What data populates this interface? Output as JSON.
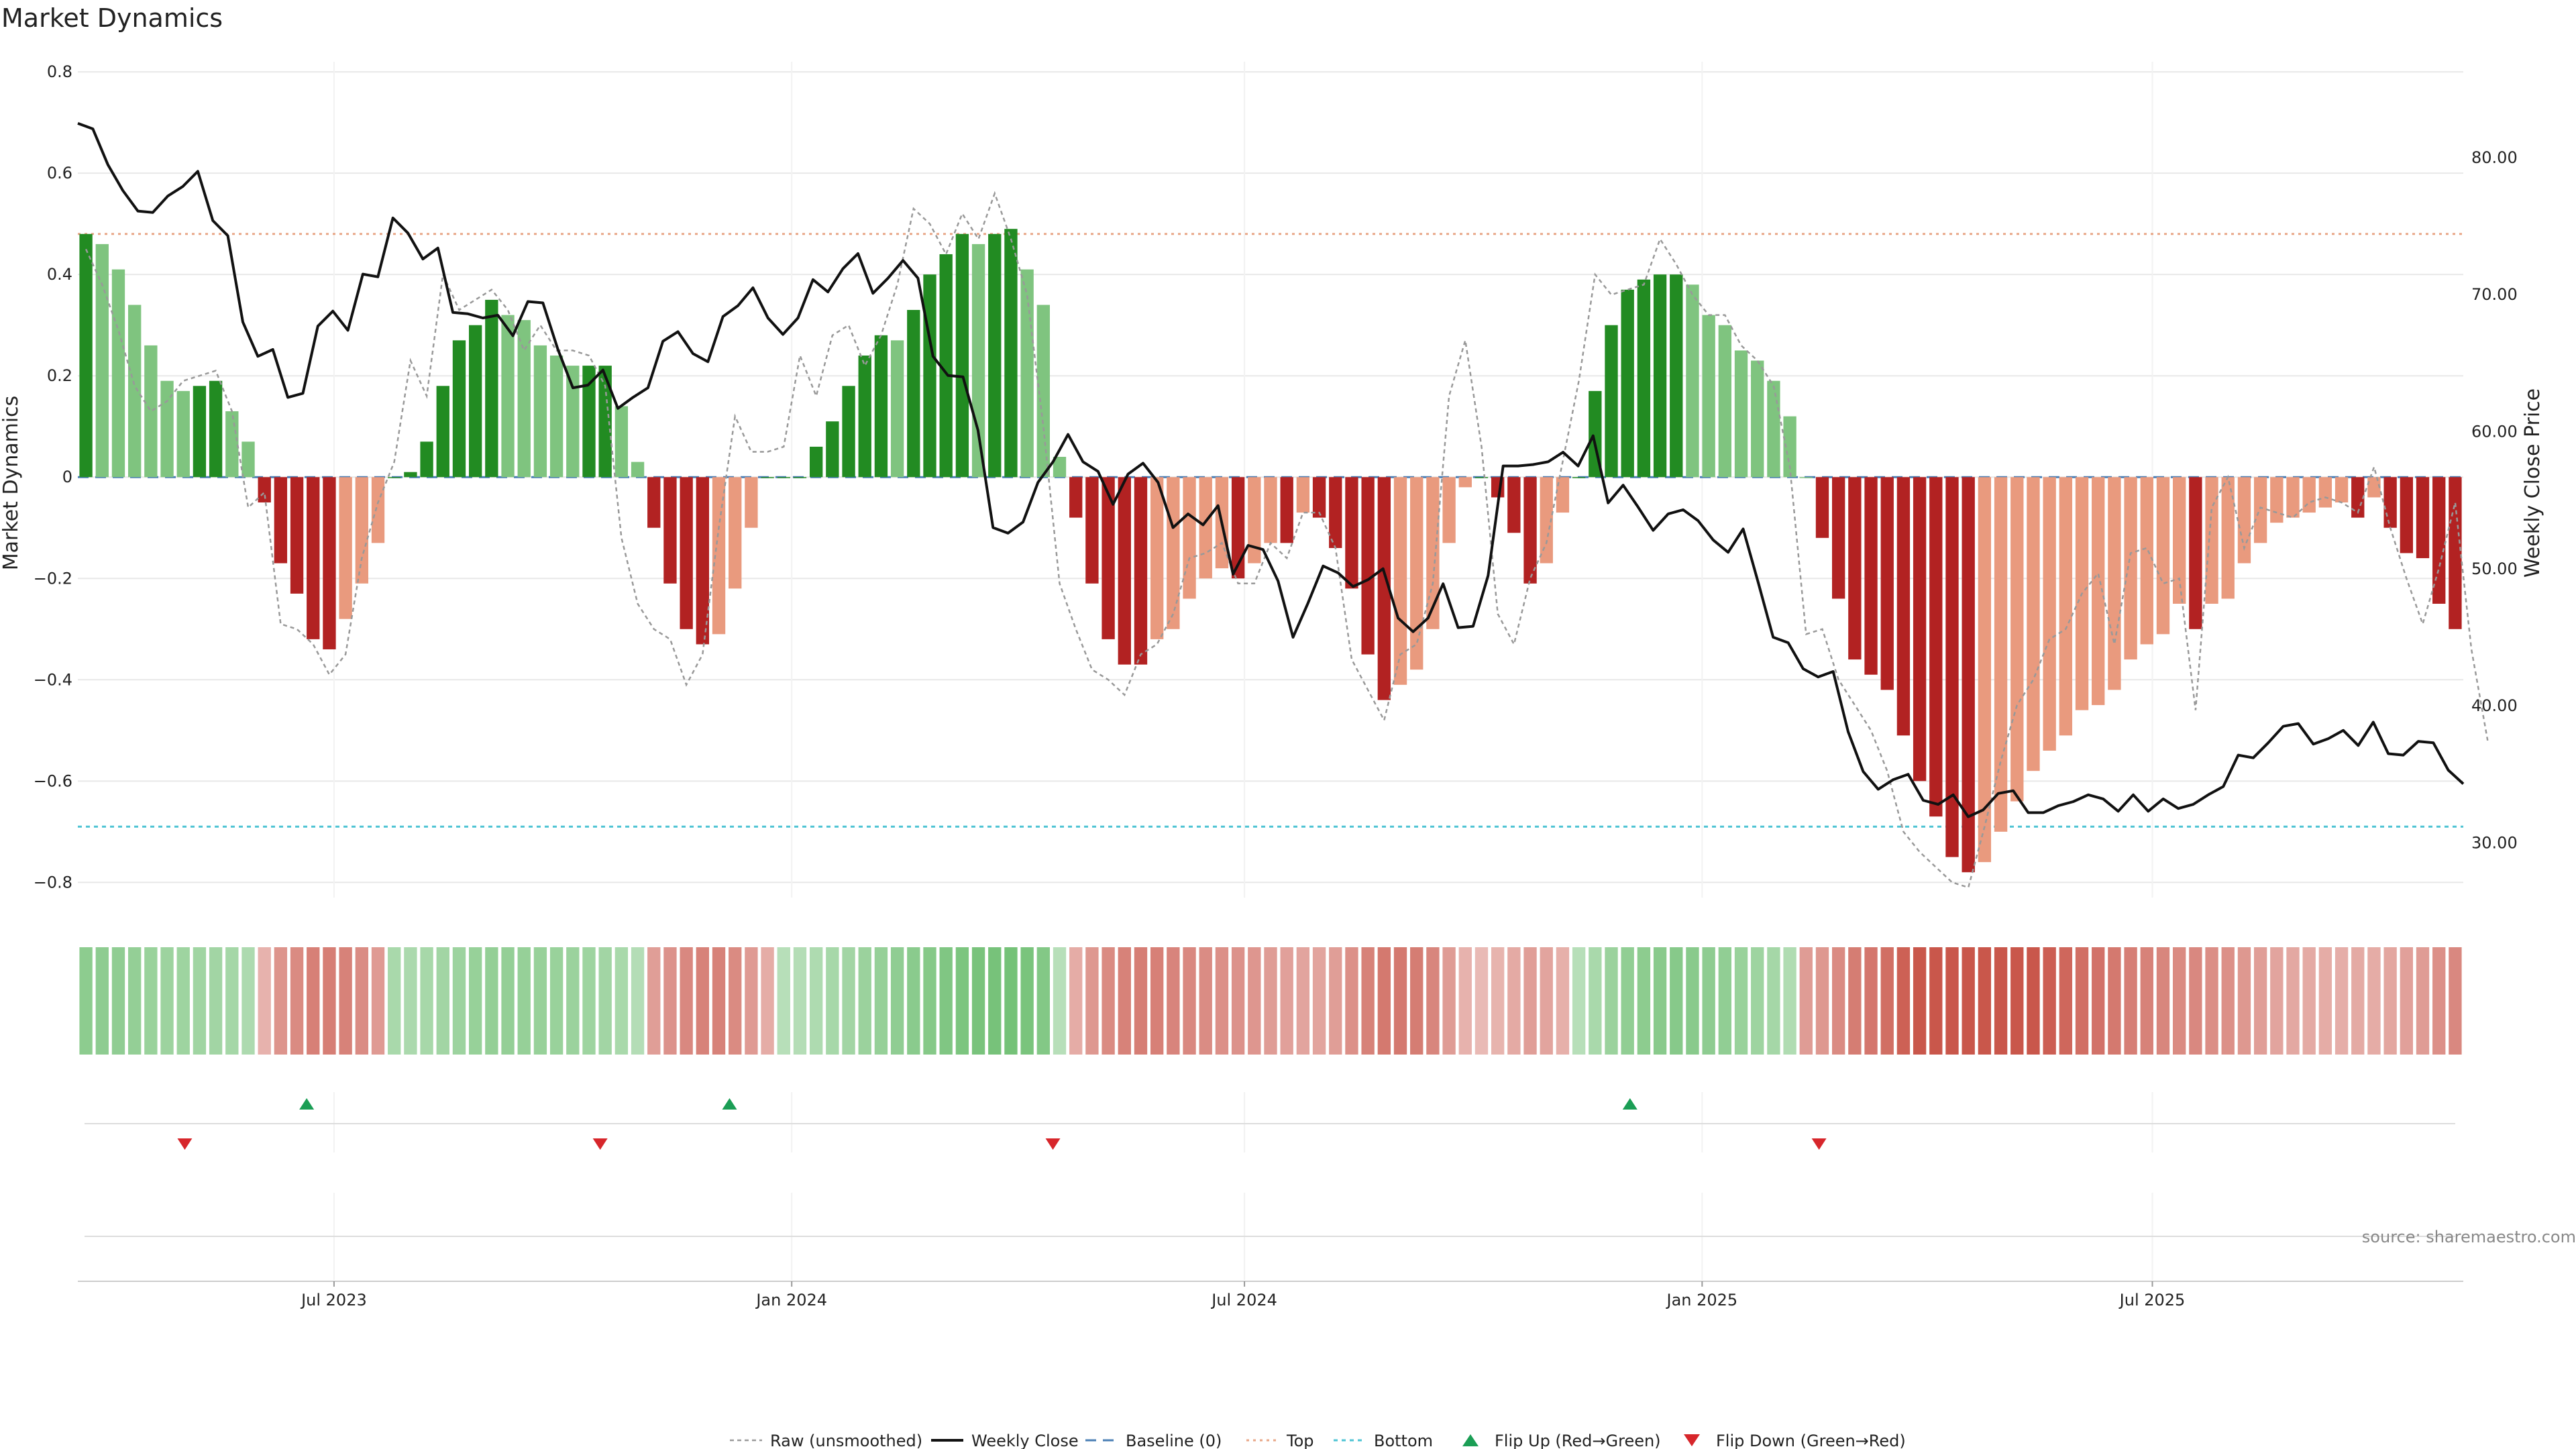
{
  "chart_data": {
    "type": "bar",
    "title": "Market Dynamics",
    "ylabel": "Market Dynamics",
    "y2label": "Weekly Close Price",
    "source": "source: sharemaestro.com",
    "ylim": [
      -0.83,
      0.82
    ],
    "y2lim": [
      26.0,
      87.0
    ],
    "yticks": [
      0.8,
      0.6,
      0.4,
      0.2,
      0,
      -0.2,
      -0.4,
      -0.6,
      -0.8
    ],
    "ytick_labels": [
      "0.8",
      "0.6",
      "0.4",
      "0.2",
      "0",
      "−0.2",
      "−0.4",
      "−0.6",
      "−0.8"
    ],
    "y2ticks": [
      80,
      70,
      60,
      50,
      40,
      30
    ],
    "y2tick_labels": [
      "80.00",
      "70.00",
      "60.00",
      "50.00",
      "40.00",
      "30.00"
    ],
    "x_date_range": [
      "2023-03-20",
      "2025-11-03"
    ],
    "xticks": [
      {
        "date": "2023-07-01",
        "label": "Jul 2023"
      },
      {
        "date": "2024-01-01",
        "label": "Jan 2024"
      },
      {
        "date": "2024-07-01",
        "label": "Jul 2024"
      },
      {
        "date": "2025-01-01",
        "label": "Jan 2025"
      },
      {
        "date": "2025-07-01",
        "label": "Jul 2025"
      }
    ],
    "top_level": 0.48,
    "bottom_level": -0.69,
    "baseline": 0,
    "bar_values": [
      0.48,
      0.46,
      0.41,
      0.34,
      0.26,
      0.19,
      0.17,
      0.18,
      0.19,
      0.13,
      0.07,
      -0.05,
      -0.17,
      -0.23,
      -0.32,
      -0.34,
      -0.28,
      -0.21,
      -0.13,
      0.0,
      0.01,
      0.07,
      0.18,
      0.27,
      0.3,
      0.35,
      0.32,
      0.31,
      0.26,
      0.24,
      0.22,
      0.22,
      0.22,
      0.14,
      0.03,
      -0.1,
      -0.21,
      -0.3,
      -0.33,
      -0.31,
      -0.22,
      -0.1,
      0.0,
      0.0,
      0.0,
      0.06,
      0.11,
      0.18,
      0.24,
      0.28,
      0.27,
      0.33,
      0.4,
      0.44,
      0.48,
      0.46,
      0.48,
      0.49,
      0.41,
      0.34,
      0.04,
      -0.08,
      -0.21,
      -0.32,
      -0.37,
      -0.37,
      -0.32,
      -0.3,
      -0.24,
      -0.2,
      -0.18,
      -0.2,
      -0.17,
      -0.13,
      -0.13,
      -0.07,
      -0.08,
      -0.14,
      -0.22,
      -0.35,
      -0.44,
      -0.41,
      -0.38,
      -0.3,
      -0.13,
      -0.02,
      0.0,
      -0.04,
      -0.11,
      -0.21,
      -0.17,
      -0.07,
      0.0,
      0.17,
      0.3,
      0.37,
      0.39,
      0.4,
      0.4,
      0.38,
      0.32,
      0.3,
      0.25,
      0.23,
      0.19,
      0.12,
      0.0,
      -0.12,
      -0.24,
      -0.36,
      -0.39,
      -0.42,
      -0.51,
      -0.6,
      -0.67,
      -0.75,
      -0.78,
      -0.76,
      -0.7,
      -0.64,
      -0.58,
      -0.54,
      -0.51,
      -0.46,
      -0.45,
      -0.42,
      -0.36,
      -0.33,
      -0.31,
      -0.25,
      -0.3,
      -0.25,
      -0.24,
      -0.17,
      -0.13,
      -0.09,
      -0.08,
      -0.07,
      -0.06,
      -0.05,
      -0.08,
      -0.04,
      -0.1,
      -0.15,
      -0.16,
      -0.25,
      -0.3
    ],
    "raw_values": [
      0.45,
      0.38,
      0.29,
      0.18,
      0.13,
      0.15,
      0.19,
      0.2,
      0.21,
      0.13,
      -0.06,
      -0.03,
      -0.29,
      -0.3,
      -0.33,
      -0.39,
      -0.35,
      -0.16,
      -0.05,
      0.03,
      0.23,
      0.16,
      0.4,
      0.33,
      0.35,
      0.37,
      0.33,
      0.25,
      0.3,
      0.25,
      0.25,
      0.24,
      0.18,
      -0.12,
      -0.25,
      -0.3,
      -0.32,
      -0.41,
      -0.35,
      -0.1,
      0.12,
      0.05,
      0.05,
      0.06,
      0.24,
      0.16,
      0.28,
      0.3,
      0.22,
      0.28,
      0.38,
      0.53,
      0.5,
      0.44,
      0.52,
      0.47,
      0.56,
      0.47,
      0.36,
      0.1,
      -0.21,
      -0.3,
      -0.38,
      -0.4,
      -0.43,
      -0.35,
      -0.33,
      -0.27,
      -0.16,
      -0.15,
      -0.13,
      -0.21,
      -0.21,
      -0.13,
      -0.16,
      -0.07,
      -0.07,
      -0.14,
      -0.36,
      -0.42,
      -0.48,
      -0.35,
      -0.33,
      -0.21,
      0.16,
      0.27,
      0.06,
      -0.27,
      -0.33,
      -0.2,
      -0.13,
      0.03,
      0.19,
      0.4,
      0.36,
      0.37,
      0.38,
      0.47,
      0.42,
      0.36,
      0.32,
      0.32,
      0.26,
      0.23,
      0.18,
      0.02,
      -0.31,
      -0.3,
      -0.4,
      -0.45,
      -0.5,
      -0.58,
      -0.7,
      -0.74,
      -0.77,
      -0.8,
      -0.81,
      -0.69,
      -0.56,
      -0.45,
      -0.4,
      -0.32,
      -0.3,
      -0.23,
      -0.19,
      -0.33,
      -0.15,
      -0.14,
      -0.21,
      -0.2,
      -0.46,
      -0.06,
      0.0,
      -0.14,
      -0.06,
      -0.07,
      -0.08,
      -0.05,
      -0.04,
      -0.05,
      -0.07,
      0.02,
      -0.1,
      -0.2,
      -0.29,
      -0.18,
      -0.05,
      -0.34,
      -0.52
    ],
    "weekly_close": [
      82.5,
      82.1,
      79.5,
      77.6,
      76.1,
      76.0,
      77.2,
      77.9,
      79.0,
      75.4,
      74.3,
      68.0,
      65.5,
      66.0,
      62.5,
      62.8,
      67.7,
      68.8,
      67.4,
      71.5,
      71.3,
      75.6,
      74.5,
      72.6,
      73.4,
      68.7,
      68.6,
      68.3,
      68.5,
      67.0,
      69.5,
      69.4,
      66.0,
      63.2,
      63.4,
      64.5,
      61.7,
      62.5,
      63.2,
      66.6,
      67.3,
      65.7,
      65.1,
      68.4,
      69.2,
      70.5,
      68.3,
      67.1,
      68.3,
      71.1,
      70.2,
      71.9,
      73.0,
      70.1,
      71.2,
      72.5,
      71.2,
      65.5,
      64.1,
      64.0,
      60.1,
      53.0,
      52.6,
      53.4,
      56.3,
      57.8,
      59.8,
      57.8,
      57.1,
      54.7,
      56.9,
      57.7,
      56.3,
      53.0,
      54.0,
      53.2,
      54.6,
      49.6,
      51.7,
      51.4,
      49.1,
      45.0,
      47.5,
      50.2,
      49.7,
      48.7,
      49.2,
      50.0,
      46.4,
      45.4,
      46.4,
      48.9,
      45.7,
      45.8,
      49.5,
      57.5,
      57.5,
      57.6,
      57.8,
      58.5,
      57.5,
      59.7,
      54.8,
      56.1,
      54.5,
      52.8,
      54.0,
      54.3,
      53.5,
      52.1,
      51.2,
      52.9,
      49.0,
      45.0,
      44.6,
      42.7,
      42.1,
      42.5,
      38.1,
      35.2,
      33.9,
      34.6,
      35.0,
      33.1,
      32.8,
      33.5,
      31.9,
      32.4,
      33.6,
      33.8,
      32.2,
      32.2,
      32.7,
      33.0,
      33.5,
      33.2,
      32.3,
      33.5,
      32.3,
      33.2,
      32.5,
      32.8,
      33.5,
      34.1,
      36.4,
      36.2,
      37.3,
      38.5,
      38.7,
      37.2,
      37.6,
      38.2,
      37.1,
      38.8,
      36.5,
      36.4,
      37.4,
      37.3,
      35.3,
      34.3
    ],
    "state_bar_values": [
      0.34,
      0.33,
      0.32,
      0.3,
      0.27,
      0.25,
      0.24,
      0.23,
      0.22,
      0.2,
      0.16,
      -0.09,
      -0.24,
      -0.29,
      -0.34,
      -0.35,
      -0.33,
      -0.28,
      -0.21,
      0.18,
      0.17,
      0.19,
      0.22,
      0.25,
      0.28,
      0.3,
      0.3,
      0.29,
      0.28,
      0.27,
      0.26,
      0.24,
      0.22,
      0.18,
      0.12,
      -0.19,
      -0.25,
      -0.3,
      -0.33,
      -0.33,
      -0.29,
      -0.21,
      -0.12,
      0.1,
      0.12,
      0.15,
      0.19,
      0.22,
      0.26,
      0.29,
      0.32,
      0.35,
      0.38,
      0.41,
      0.43,
      0.45,
      0.46,
      0.47,
      0.44,
      0.39,
      0.1,
      -0.12,
      -0.22,
      -0.29,
      -0.33,
      -0.35,
      -0.34,
      -0.32,
      -0.3,
      -0.28,
      -0.26,
      -0.25,
      -0.23,
      -0.2,
      -0.18,
      -0.16,
      -0.16,
      -0.19,
      -0.26,
      -0.33,
      -0.38,
      -0.38,
      -0.36,
      -0.31,
      -0.2,
      -0.09,
      -0.05,
      -0.08,
      -0.13,
      -0.19,
      -0.16,
      -0.1,
      0.1,
      0.18,
      0.26,
      0.31,
      0.34,
      0.36,
      0.37,
      0.36,
      0.33,
      0.31,
      0.27,
      0.24,
      0.2,
      0.14,
      -0.2,
      -0.22,
      -0.29,
      -0.36,
      -0.39,
      -0.43,
      -0.5,
      -0.57,
      -0.63,
      -0.7,
      -0.73,
      -0.72,
      -0.68,
      -0.62,
      -0.56,
      -0.51,
      -0.47,
      -0.43,
      -0.41,
      -0.38,
      -0.35,
      -0.33,
      -0.31,
      -0.29,
      -0.3,
      -0.27,
      -0.26,
      -0.22,
      -0.19,
      -0.16,
      -0.14,
      -0.13,
      -0.12,
      -0.11,
      -0.13,
      -0.12,
      -0.15,
      -0.18,
      -0.2,
      -0.26,
      -0.3
    ],
    "flip_up_dates": [
      "2023-06-20",
      "2023-12-07",
      "2024-12-03"
    ],
    "flip_down_dates": [
      "2023-05-02",
      "2023-10-16",
      "2024-04-15",
      "2025-02-17"
    ],
    "colors": {
      "pos_strong": "#228b22",
      "pos_weak": "#7fc47f",
      "neg_strong": "#b22222",
      "neg_weak": "#e99a7e",
      "weekly_close": "#111111",
      "raw": "#999999",
      "baseline": "#4a7fb5",
      "top": "#e8a788",
      "bottom": "#4fc4d4",
      "flip_up": "#1b9e55",
      "flip_down": "#d7262b",
      "grid": "#e8e8e8"
    },
    "legend": [
      {
        "label": "Raw (unsmoothed)",
        "marker": "raw"
      },
      {
        "label": "Weekly Close",
        "marker": "close"
      },
      {
        "label": "Baseline (0)",
        "marker": "baseline"
      },
      {
        "label": "Top",
        "marker": "top"
      },
      {
        "label": "Bottom",
        "marker": "bottom"
      },
      {
        "label": "Flip Up (Red→Green)",
        "marker": "flip-up"
      },
      {
        "label": "Flip Down (Green→Red)",
        "marker": "flip-down"
      }
    ]
  }
}
